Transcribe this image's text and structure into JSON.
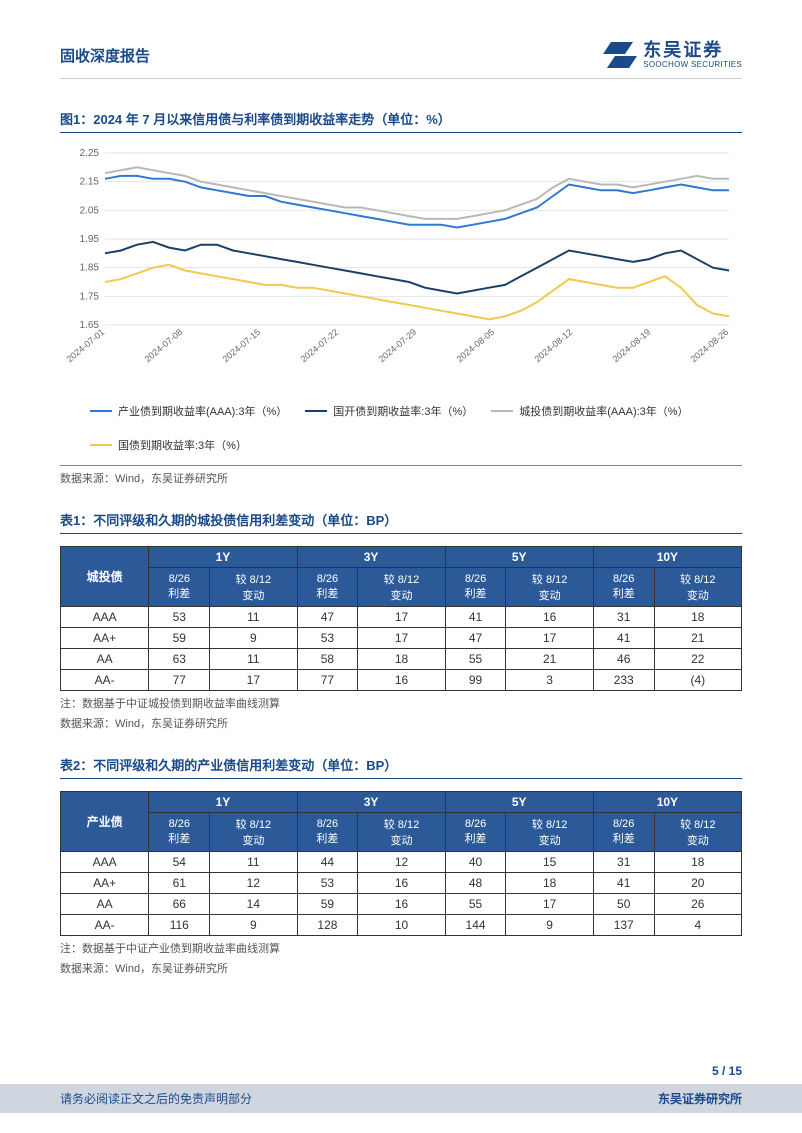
{
  "header": {
    "title": "固收深度报告",
    "logo_cn": "东吴证券",
    "logo_en": "SOOCHOW SECURITIES"
  },
  "figure1": {
    "title": "图1：2024 年 7 月以来信用债与利率债到期收益率走势（单位：%）",
    "type": "line",
    "ylim": [
      1.65,
      2.25
    ],
    "ytick_step": 0.1,
    "yticks": [
      "1.65",
      "1.75",
      "1.85",
      "1.95",
      "2.05",
      "2.15",
      "2.25"
    ],
    "xlabels": [
      "2024-07-01",
      "2024-07-08",
      "2024-07-15",
      "2024-07-22",
      "2024-07-29",
      "2024-08-05",
      "2024-08-12",
      "2024-08-19",
      "2024-08-26"
    ],
    "grid_color": "#e5e5e5",
    "background_color": "#ffffff",
    "label_fontsize": 10,
    "line_width": 2,
    "series": [
      {
        "name": "产业债到期收益率(AAA):3年（%）",
        "color": "#2d79d3",
        "data": [
          2.16,
          2.17,
          2.17,
          2.16,
          2.16,
          2.15,
          2.13,
          2.12,
          2.11,
          2.1,
          2.1,
          2.08,
          2.07,
          2.06,
          2.05,
          2.04,
          2.03,
          2.02,
          2.01,
          2.0,
          2.0,
          2.0,
          1.99,
          2.0,
          2.01,
          2.02,
          2.04,
          2.06,
          2.1,
          2.14,
          2.13,
          2.12,
          2.12,
          2.11,
          2.12,
          2.13,
          2.14,
          2.13,
          2.12,
          2.12
        ]
      },
      {
        "name": "城投债到期收益率(AAA):3年（%）",
        "color": "#b8b8b8",
        "data": [
          2.18,
          2.19,
          2.2,
          2.19,
          2.18,
          2.17,
          2.15,
          2.14,
          2.13,
          2.12,
          2.11,
          2.1,
          2.09,
          2.08,
          2.07,
          2.06,
          2.06,
          2.05,
          2.04,
          2.03,
          2.02,
          2.02,
          2.02,
          2.03,
          2.04,
          2.05,
          2.07,
          2.09,
          2.13,
          2.16,
          2.15,
          2.14,
          2.14,
          2.13,
          2.14,
          2.15,
          2.16,
          2.17,
          2.16,
          2.16
        ]
      },
      {
        "name": "国开债到期收益率:3年（%）",
        "color": "#1a4068",
        "data": [
          1.9,
          1.91,
          1.93,
          1.94,
          1.92,
          1.91,
          1.93,
          1.93,
          1.91,
          1.9,
          1.89,
          1.88,
          1.87,
          1.86,
          1.85,
          1.84,
          1.83,
          1.82,
          1.81,
          1.8,
          1.78,
          1.77,
          1.76,
          1.77,
          1.78,
          1.79,
          1.82,
          1.85,
          1.88,
          1.91,
          1.9,
          1.89,
          1.88,
          1.87,
          1.88,
          1.9,
          1.91,
          1.88,
          1.85,
          1.84
        ]
      },
      {
        "name": "国债到期收益率:3年（%）",
        "color": "#f2c94c",
        "data": [
          1.8,
          1.81,
          1.83,
          1.85,
          1.86,
          1.84,
          1.83,
          1.82,
          1.81,
          1.8,
          1.79,
          1.79,
          1.78,
          1.78,
          1.77,
          1.76,
          1.75,
          1.74,
          1.73,
          1.72,
          1.71,
          1.7,
          1.69,
          1.68,
          1.67,
          1.68,
          1.7,
          1.73,
          1.77,
          1.81,
          1.8,
          1.79,
          1.78,
          1.78,
          1.8,
          1.82,
          1.78,
          1.72,
          1.69,
          1.68
        ]
      }
    ],
    "source": "数据来源：Wind，东吴证券研究所"
  },
  "table1": {
    "title": "表1：不同评级和久期的城投债信用利差变动（单位：BP）",
    "corner_label": "城投债",
    "header_bg": "#2c5a99",
    "header_fg": "#ffffff",
    "periods": [
      "1Y",
      "3Y",
      "5Y",
      "10Y"
    ],
    "subheaders": [
      "8/26\n利差",
      "较 8/12\n变动"
    ],
    "rows": [
      {
        "label": "AAA",
        "cells": [
          "53",
          "11",
          "47",
          "17",
          "41",
          "16",
          "31",
          "18"
        ]
      },
      {
        "label": "AA+",
        "cells": [
          "59",
          "9",
          "53",
          "17",
          "47",
          "17",
          "41",
          "21"
        ]
      },
      {
        "label": "AA",
        "cells": [
          "63",
          "11",
          "58",
          "18",
          "55",
          "21",
          "46",
          "22"
        ]
      },
      {
        "label": "AA-",
        "cells": [
          "77",
          "17",
          "77",
          "16",
          "99",
          "3",
          "233",
          "(4)"
        ]
      }
    ],
    "note": "注：数据基于中证城投债到期收益率曲线测算",
    "source": "数据来源：Wind，东吴证券研究所"
  },
  "table2": {
    "title": "表2：不同评级和久期的产业债信用利差变动（单位：BP）",
    "corner_label": "产业债",
    "header_bg": "#2c5a99",
    "header_fg": "#ffffff",
    "periods": [
      "1Y",
      "3Y",
      "5Y",
      "10Y"
    ],
    "subheaders": [
      "8/26\n利差",
      "较 8/12\n变动"
    ],
    "rows": [
      {
        "label": "AAA",
        "cells": [
          "54",
          "11",
          "44",
          "12",
          "40",
          "15",
          "31",
          "18"
        ]
      },
      {
        "label": "AA+",
        "cells": [
          "61",
          "12",
          "53",
          "16",
          "48",
          "18",
          "41",
          "20"
        ]
      },
      {
        "label": "AA",
        "cells": [
          "66",
          "14",
          "59",
          "16",
          "55",
          "17",
          "50",
          "26"
        ]
      },
      {
        "label": "AA-",
        "cells": [
          "116",
          "9",
          "128",
          "10",
          "144",
          "9",
          "137",
          "4"
        ]
      }
    ],
    "note": "注：数据基于中证产业债到期收益率曲线测算",
    "source": "数据来源：Wind，东吴证券研究所"
  },
  "footer": {
    "page": "5 / 15",
    "left": "请务必阅读正文之后的免责声明部分",
    "right": "东吴证券研究所"
  }
}
